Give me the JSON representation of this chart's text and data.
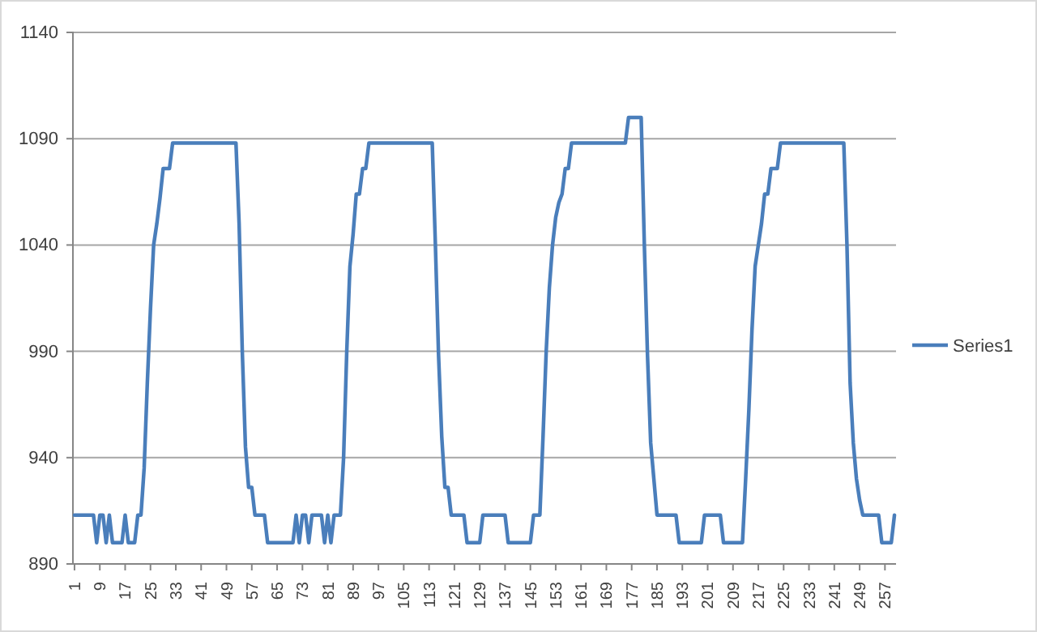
{
  "chart_data": {
    "type": "line",
    "xlim": [
      0.5,
      260.5
    ],
    "xticks": [
      1,
      9,
      17,
      25,
      33,
      41,
      49,
      57,
      65,
      73,
      81,
      89,
      97,
      105,
      113,
      121,
      129,
      137,
      145,
      153,
      161,
      169,
      177,
      185,
      193,
      201,
      209,
      217,
      225,
      233,
      241,
      249,
      257
    ],
    "ylim": [
      890,
      1140
    ],
    "yticks": [
      890,
      940,
      990,
      1040,
      1090,
      1140
    ],
    "grid": "y",
    "legend": "right",
    "marker": "none",
    "line_style": "solid",
    "series": [
      {
        "name": "Series1",
        "color": "#4a7ebb",
        "x": [
          1,
          2,
          3,
          4,
          5,
          6,
          7,
          8,
          9,
          10,
          11,
          12,
          13,
          14,
          15,
          16,
          17,
          18,
          19,
          20,
          21,
          22,
          23,
          24,
          25,
          26,
          27,
          28,
          29,
          30,
          31,
          32,
          33,
          34,
          35,
          36,
          37,
          38,
          39,
          40,
          41,
          42,
          43,
          44,
          45,
          46,
          47,
          48,
          49,
          50,
          51,
          52,
          53,
          54,
          55,
          56,
          57,
          58,
          59,
          60,
          61,
          62,
          63,
          64,
          65,
          66,
          67,
          68,
          69,
          70,
          71,
          72,
          73,
          74,
          75,
          76,
          77,
          78,
          79,
          80,
          81,
          82,
          83,
          84,
          85,
          86,
          87,
          88,
          89,
          90,
          91,
          92,
          93,
          94,
          95,
          96,
          97,
          98,
          99,
          100,
          101,
          102,
          103,
          104,
          105,
          106,
          107,
          108,
          109,
          110,
          111,
          112,
          113,
          114,
          115,
          116,
          117,
          118,
          119,
          120,
          121,
          122,
          123,
          124,
          125,
          126,
          127,
          128,
          129,
          130,
          131,
          132,
          133,
          134,
          135,
          136,
          137,
          138,
          139,
          140,
          141,
          142,
          143,
          144,
          145,
          146,
          147,
          148,
          149,
          150,
          151,
          152,
          153,
          154,
          155,
          156,
          157,
          158,
          159,
          160,
          161,
          162,
          163,
          164,
          165,
          166,
          167,
          168,
          169,
          170,
          171,
          172,
          173,
          174,
          175,
          176,
          177,
          178,
          179,
          180,
          181,
          182,
          183,
          184,
          185,
          186,
          187,
          188,
          189,
          190,
          191,
          192,
          193,
          194,
          195,
          196,
          197,
          198,
          199,
          200,
          201,
          202,
          203,
          204,
          205,
          206,
          207,
          208,
          209,
          210,
          211,
          212,
          213,
          214,
          215,
          216,
          217,
          218,
          219,
          220,
          221,
          222,
          223,
          224,
          225,
          226,
          227,
          228,
          229,
          230,
          231,
          232,
          233,
          234,
          235,
          236,
          237,
          238,
          239,
          240,
          241,
          242,
          243,
          244,
          245,
          246,
          247,
          248,
          249,
          250,
          251,
          252,
          253,
          254,
          255,
          256,
          257,
          258,
          259,
          260
        ],
        "values": [
          913,
          913,
          913,
          913,
          913,
          913,
          913,
          900,
          913,
          913,
          900,
          913,
          900,
          900,
          900,
          900,
          913,
          900,
          900,
          900,
          913,
          913,
          935,
          975,
          1010,
          1040,
          1050,
          1062,
          1076,
          1076,
          1076,
          1088,
          1088,
          1088,
          1088,
          1088,
          1088,
          1088,
          1088,
          1088,
          1088,
          1088,
          1088,
          1088,
          1088,
          1088,
          1088,
          1088,
          1088,
          1088,
          1088,
          1088,
          1050,
          990,
          945,
          926,
          926,
          913,
          913,
          913,
          913,
          900,
          900,
          900,
          900,
          900,
          900,
          900,
          900,
          900,
          913,
          900,
          913,
          913,
          900,
          913,
          913,
          913,
          913,
          900,
          913,
          900,
          913,
          913,
          913,
          940,
          990,
          1030,
          1045,
          1064,
          1064,
          1076,
          1076,
          1088,
          1088,
          1088,
          1088,
          1088,
          1088,
          1088,
          1088,
          1088,
          1088,
          1088,
          1088,
          1088,
          1088,
          1088,
          1088,
          1088,
          1088,
          1088,
          1088,
          1088,
          1040,
          988,
          950,
          926,
          926,
          913,
          913,
          913,
          913,
          913,
          900,
          900,
          900,
          900,
          900,
          913,
          913,
          913,
          913,
          913,
          913,
          913,
          913,
          900,
          900,
          900,
          900,
          900,
          900,
          900,
          900,
          913,
          913,
          913,
          950,
          990,
          1020,
          1040,
          1053,
          1060,
          1064,
          1076,
          1076,
          1088,
          1088,
          1088,
          1088,
          1088,
          1088,
          1088,
          1088,
          1088,
          1088,
          1088,
          1088,
          1088,
          1088,
          1088,
          1088,
          1088,
          1088,
          1100,
          1100,
          1100,
          1100,
          1100,
          1040,
          988,
          947,
          930,
          913,
          913,
          913,
          913,
          913,
          913,
          913,
          900,
          900,
          900,
          900,
          900,
          900,
          900,
          900,
          913,
          913,
          913,
          913,
          913,
          913,
          900,
          900,
          900,
          900,
          900,
          900,
          900,
          930,
          962,
          1000,
          1030,
          1040,
          1050,
          1064,
          1064,
          1076,
          1076,
          1076,
          1088,
          1088,
          1088,
          1088,
          1088,
          1088,
          1088,
          1088,
          1088,
          1088,
          1088,
          1088,
          1088,
          1088,
          1088,
          1088,
          1088,
          1088,
          1088,
          1088,
          1088,
          1040,
          975,
          947,
          930,
          920,
          913,
          913,
          913,
          913,
          913,
          913,
          900,
          900,
          900,
          900,
          913
        ]
      }
    ]
  }
}
